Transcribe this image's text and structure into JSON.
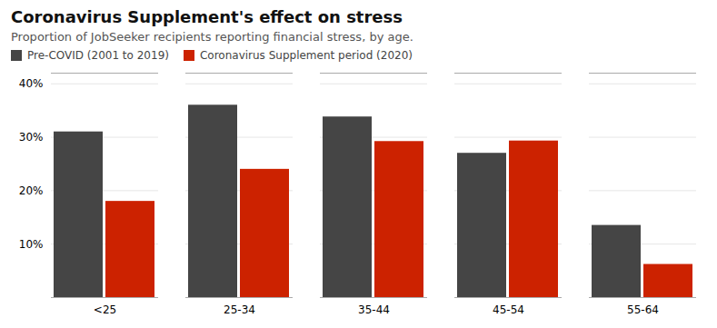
{
  "chart_data": {
    "type": "bar",
    "title": "Coronavirus Supplement's effect on stress",
    "subtitle": "Proportion of JobSeeker recipients reporting financial stress, by age.",
    "categories": [
      "<25",
      "25-34",
      "35-44",
      "45-54",
      "55-64"
    ],
    "series": [
      {
        "name": "Pre-COVID (2001 to 2019)",
        "color": "#454545",
        "values": [
          31.0,
          36.0,
          33.8,
          27.0,
          13.5
        ]
      },
      {
        "name": "Coronavirus Supplement period (2020)",
        "color": "#cc2200",
        "values": [
          18.0,
          24.0,
          29.2,
          29.3,
          6.2
        ]
      }
    ],
    "ylim": [
      0,
      42
    ],
    "yticks": [
      {
        "value": 10,
        "label": "10%"
      },
      {
        "value": 20,
        "label": "20%"
      },
      {
        "value": 30,
        "label": "30%"
      },
      {
        "value": 40,
        "label": "40%"
      }
    ],
    "grid": true,
    "legend": "upper left"
  }
}
